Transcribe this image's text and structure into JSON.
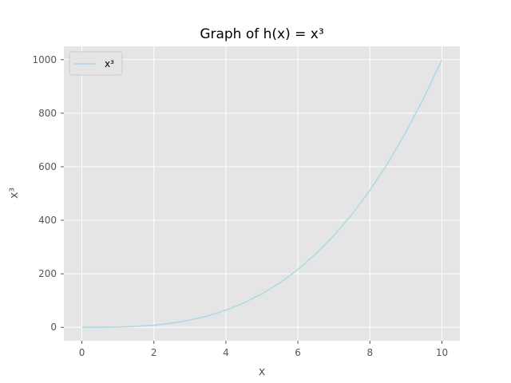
{
  "chart_data": {
    "type": "line",
    "title": "Graph of h(x) = x³",
    "xlabel": "x",
    "ylabel": "x³",
    "xlim": [
      -0.5,
      10.5
    ],
    "ylim": [
      -50,
      1050
    ],
    "x_ticks": [
      0,
      2,
      4,
      6,
      8,
      10
    ],
    "y_ticks": [
      0,
      200,
      400,
      600,
      800,
      1000
    ],
    "grid": true,
    "legend_position": "top-left",
    "series": [
      {
        "name": "x³",
        "color": "#add8e6",
        "x": [
          0,
          0.5,
          1,
          1.5,
          2,
          2.5,
          3,
          3.5,
          4,
          4.5,
          5,
          5.5,
          6,
          6.5,
          7,
          7.5,
          8,
          8.5,
          9,
          9.5,
          10
        ],
        "y": [
          0,
          0.125,
          1,
          3.375,
          8,
          15.625,
          27,
          42.875,
          64,
          91.125,
          125,
          166.375,
          216,
          274.625,
          343,
          421.875,
          512,
          614.125,
          729,
          857.375,
          1000
        ]
      }
    ],
    "colors": {
      "plot_background": "#e5e5e5",
      "grid": "#ffffff",
      "tick_label": "#555555"
    }
  }
}
